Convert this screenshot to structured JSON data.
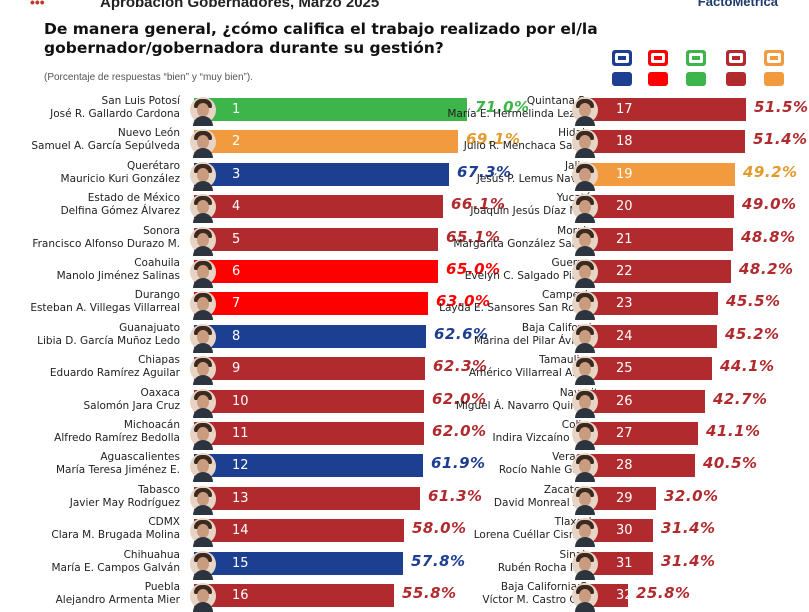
{
  "header": {
    "mark": "•••",
    "heading": "Aprobación Gobernadores, Marzo 2025",
    "brand": "FactoMétrica"
  },
  "colors": {
    "morena": "#b02a2e",
    "pan": "#1d3f91",
    "pri": "#ff0000",
    "mc": "#f19a3e",
    "pvem": "#3db54a",
    "pct_text_default": "#b02a2e",
    "pct_text_mc": "#e39a2e"
  },
  "legend": [
    {
      "party": "pan",
      "icon": "pan-logo-icon"
    },
    {
      "party": "pri",
      "icon": "pri-logo-icon"
    },
    {
      "party": "pvem",
      "icon": "pvem-logo-icon"
    },
    {
      "party": "morena",
      "icon": "morena-logo-icon"
    },
    {
      "party": "mc",
      "icon": "mc-logo-icon"
    }
  ],
  "chart_data": {
    "type": "bar",
    "title": "De manera general, ¿cómo califica el trabajo realizado por el/la gobernador/gobernadora durante su gestión?",
    "subtitle": "(Porcentaje de respuestas “bien” y “muy bien”).",
    "unit": "%",
    "rows": [
      {
        "rank": "1",
        "state": "San Luis Potosí",
        "governor": "José R. Gallardo Cardona",
        "value": 71.0,
        "label": "71.0%",
        "party": "pvem"
      },
      {
        "rank": "2",
        "state": "Nuevo León",
        "governor": "Samuel A. García Sepúlveda",
        "value": 69.1,
        "label": "69.1%",
        "party": "mc"
      },
      {
        "rank": "3",
        "state": "Querétaro",
        "governor": "Mauricio Kuri González",
        "value": 67.3,
        "label": "67.3%",
        "party": "pan"
      },
      {
        "rank": "4",
        "state": "Estado de México",
        "governor": "Delfina Gómez Álvarez",
        "value": 66.1,
        "label": "66.1%",
        "party": "morena"
      },
      {
        "rank": "5",
        "state": "Sonora",
        "governor": "Francisco Alfonso Durazo M.",
        "value": 65.1,
        "label": "65.1%",
        "party": "morena"
      },
      {
        "rank": "6",
        "state": "Coahuila",
        "governor": "Manolo Jiménez Salinas",
        "value": 65.0,
        "label": "65.0%",
        "party": "pri"
      },
      {
        "rank": "7",
        "state": "Durango",
        "governor": "Esteban A. Villegas Villarreal",
        "value": 63.0,
        "label": "63.0%",
        "party": "pri"
      },
      {
        "rank": "8",
        "state": "Guanajuato",
        "governor": "Libia D. García Muñoz Ledo",
        "value": 62.6,
        "label": "62.6%",
        "party": "pan"
      },
      {
        "rank": "9",
        "state": "Chiapas",
        "governor": "Eduardo Ramírez Aguilar",
        "value": 62.3,
        "label": "62.3%",
        "party": "morena"
      },
      {
        "rank": "10",
        "state": "Oaxaca",
        "governor": "Salomón Jara Cruz",
        "value": 62.0,
        "label": "62.0%",
        "party": "morena"
      },
      {
        "rank": "11",
        "state": "Michoacán",
        "governor": "Alfredo Ramírez Bedolla",
        "value": 62.0,
        "label": "62.0%",
        "party": "morena"
      },
      {
        "rank": "12",
        "state": "Aguascalientes",
        "governor": "María Teresa Jiménez E.",
        "value": 61.9,
        "label": "61.9%",
        "party": "pan"
      },
      {
        "rank": "13",
        "state": "Tabasco",
        "governor": "Javier May Rodríguez",
        "value": 61.3,
        "label": "61.3%",
        "party": "morena"
      },
      {
        "rank": "14",
        "state": "CDMX",
        "governor": "Clara M. Brugada Molina",
        "value": 58.0,
        "label": "58.0%",
        "party": "morena"
      },
      {
        "rank": "15",
        "state": "Chihuahua",
        "governor": "María E. Campos Galván",
        "value": 57.8,
        "label": "57.8%",
        "party": "pan"
      },
      {
        "rank": "16",
        "state": "Puebla",
        "governor": "Alejandro Armenta Mier",
        "value": 55.8,
        "label": "55.8%",
        "party": "morena"
      },
      {
        "rank": "17",
        "state": "Quintana Roo",
        "governor": "María E. Hermelinda Lezama",
        "value": 51.5,
        "label": "51.5%",
        "party": "morena"
      },
      {
        "rank": "18",
        "state": "Hidalgo",
        "governor": "Julio R. Menchaca Salazar",
        "value": 51.4,
        "label": "51.4%",
        "party": "morena"
      },
      {
        "rank": "19",
        "state": "Jalisco",
        "governor": "Jesús P. Lemus Navarro",
        "value": 49.2,
        "label": "49.2%",
        "party": "mc"
      },
      {
        "rank": "20",
        "state": "Yucatán",
        "governor": "Joaquín Jesús Díaz Mena",
        "value": 49.0,
        "label": "49.0%",
        "party": "morena"
      },
      {
        "rank": "21",
        "state": "Morelos",
        "governor": "Margarita González Saravia",
        "value": 48.8,
        "label": "48.8%",
        "party": "morena"
      },
      {
        "rank": "22",
        "state": "Guerrero",
        "governor": "Evelyn C. Salgado Pineda",
        "value": 48.2,
        "label": "48.2%",
        "party": "morena"
      },
      {
        "rank": "23",
        "state": "Campeche",
        "governor": "Layda E. Sansores San Román",
        "value": 45.5,
        "label": "45.5%",
        "party": "morena"
      },
      {
        "rank": "24",
        "state": "Baja California",
        "governor": "Marina del Pilar Ávila O.",
        "value": 45.2,
        "label": "45.2%",
        "party": "morena"
      },
      {
        "rank": "25",
        "state": "Tamaulipas",
        "governor": "Américo Villarreal Anaya",
        "value": 44.1,
        "label": "44.1%",
        "party": "morena"
      },
      {
        "rank": "26",
        "state": "Nayarit",
        "governor": "Miguel Á. Navarro Quintero",
        "value": 42.7,
        "label": "42.7%",
        "party": "morena"
      },
      {
        "rank": "27",
        "state": "Colima",
        "governor": "Indira Vizcaíno Silva",
        "value": 41.1,
        "label": "41.1%",
        "party": "morena"
      },
      {
        "rank": "28",
        "state": "Veracruz",
        "governor": "Rocío Nahle García",
        "value": 40.5,
        "label": "40.5%",
        "party": "morena"
      },
      {
        "rank": "29",
        "state": "Zacatecas",
        "governor": "David Monreal Ávila",
        "value": 32.0,
        "label": "32.0%",
        "party": "morena"
      },
      {
        "rank": "30",
        "state": "Tlaxcala",
        "governor": "Lorena Cuéllar Cisneros",
        "value": 31.4,
        "label": "31.4%",
        "party": "morena"
      },
      {
        "rank": "31",
        "state": "Sinaloa",
        "governor": "Rubén Rocha Moya",
        "value": 31.4,
        "label": "31.4%",
        "party": "morena"
      },
      {
        "rank": "32",
        "state": "Baja California Sur",
        "governor": "Víctor M. Castro Cosío",
        "value": 25.8,
        "label": "25.8%",
        "party": "morena"
      }
    ]
  }
}
